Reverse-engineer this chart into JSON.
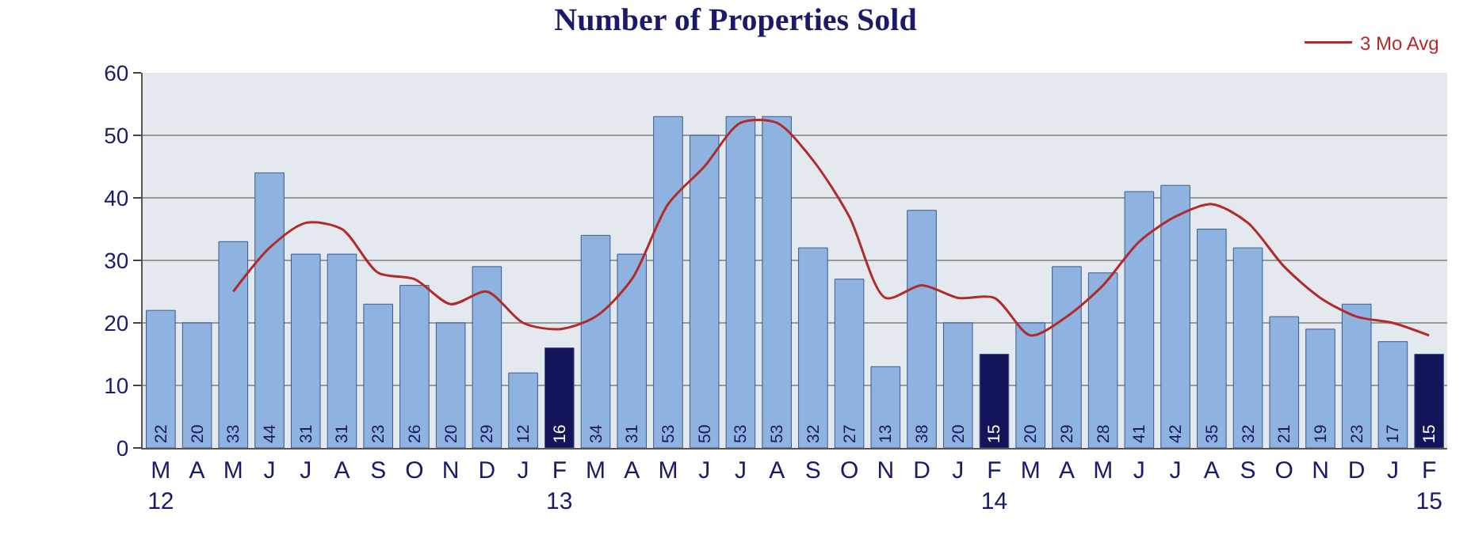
{
  "chart_data": {
    "type": "bar",
    "title": "Number of Properties Sold",
    "categories": [
      "M\n12",
      "A",
      "M",
      "J",
      "J",
      "A",
      "S",
      "O",
      "N",
      "D",
      "J",
      "F\n13",
      "M",
      "A",
      "M",
      "J",
      "J",
      "A",
      "S",
      "O",
      "N",
      "D",
      "J",
      "F\n14",
      "M",
      "A",
      "M",
      "J",
      "J",
      "A",
      "S",
      "O",
      "N",
      "D",
      "J",
      "F\n15"
    ],
    "series": [
      {
        "value_labels": [
          "22",
          "20",
          "33",
          "44",
          "31",
          "31",
          "23",
          "26",
          "20",
          "29",
          "12",
          "16",
          "34",
          "31",
          "53",
          "50",
          "53",
          "53",
          "32",
          "27",
          "13",
          "38",
          "20",
          "15",
          "20",
          "29",
          "28",
          "41",
          "42",
          "35",
          "32",
          "21",
          "19",
          "23",
          "17",
          "15"
        ],
        "colors": [
          "#8fb3e0",
          "#8fb3e0",
          "#8fb3e0",
          "#8fb3e0",
          "#8fb3e0",
          "#8fb3e0",
          "#8fb3e0",
          "#8fb3e0",
          "#8fb3e0",
          "#8fb3e0",
          "#8fb3e0",
          "#14145a",
          "#8fb3e0",
          "#8fb3e0",
          "#8fb3e0",
          "#8fb3e0",
          "#8fb3e0",
          "#8fb3e0",
          "#8fb3e0",
          "#8fb3e0",
          "#8fb3e0",
          "#8fb3e0",
          "#8fb3e0",
          "#14145a",
          "#8fb3e0",
          "#8fb3e0",
          "#8fb3e0",
          "#8fb3e0",
          "#8fb3e0",
          "#8fb3e0",
          "#8fb3e0",
          "#8fb3e0",
          "#8fb3e0",
          "#8fb3e0",
          "#8fb3e0",
          "#14145a"
        ],
        "values": [
          22,
          20,
          33,
          44,
          31,
          31,
          23,
          26,
          20,
          29,
          12,
          16,
          34,
          31,
          53,
          50,
          53,
          53,
          32,
          27,
          13,
          38,
          20,
          15,
          20,
          29,
          28,
          41,
          42,
          35,
          32,
          21,
          19,
          23,
          17,
          15
        ]
      },
      {
        "type": "line",
        "name": "3 Mo Avg",
        "color": "#b22a2a",
        "values": [
          null,
          null,
          25,
          32,
          36,
          35,
          28,
          27,
          23,
          25,
          20,
          19,
          21,
          27,
          39,
          45,
          52,
          52,
          46,
          37,
          24,
          26,
          24,
          24,
          18,
          21,
          26,
          33,
          37,
          39,
          36,
          29,
          24,
          21,
          20,
          18
        ]
      }
    ],
    "ylim": [
      0,
      60
    ],
    "yticks": [
      0,
      10,
      20,
      30,
      40,
      50,
      60
    ],
    "grid": "y",
    "legend": "top right",
    "marker": "none",
    "line_style": "solid"
  }
}
